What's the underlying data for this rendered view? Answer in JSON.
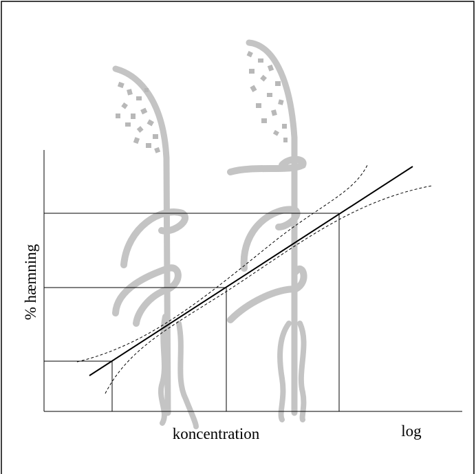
{
  "labels": {
    "y_axis": "% hæmning",
    "x_axis": "koncentration",
    "x_axis_scale": "log"
  }
}
